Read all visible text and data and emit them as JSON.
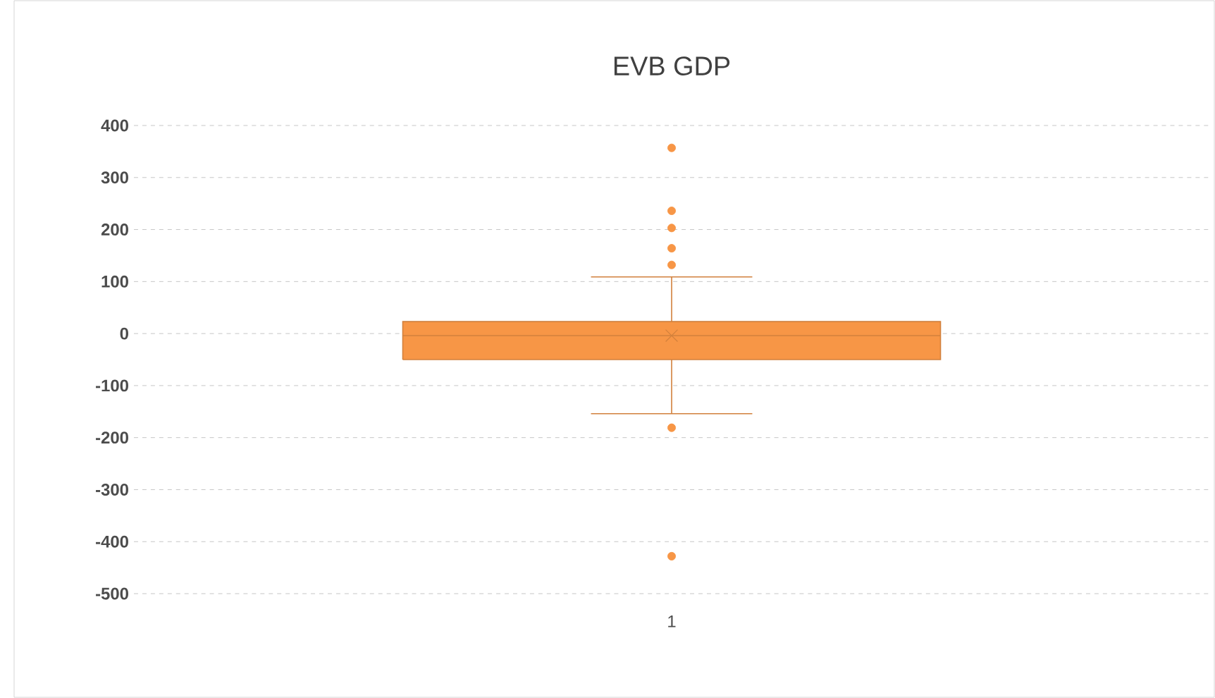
{
  "chart_data": {
    "type": "box",
    "title": "EVB GDP",
    "categories": [
      "1"
    ],
    "boxes": [
      {
        "low": -154,
        "q1": -50,
        "median": -4,
        "q3": 23,
        "high": 109,
        "mean": -4,
        "outliers": [
          357,
          236,
          203,
          164,
          132,
          -181,
          -428
        ]
      }
    ],
    "color": "#f79646",
    "ylim": [
      -500,
      400
    ],
    "yticks": [
      -500,
      -400,
      -300,
      -200,
      -100,
      0,
      100,
      200,
      300,
      400
    ],
    "grid": "y"
  }
}
